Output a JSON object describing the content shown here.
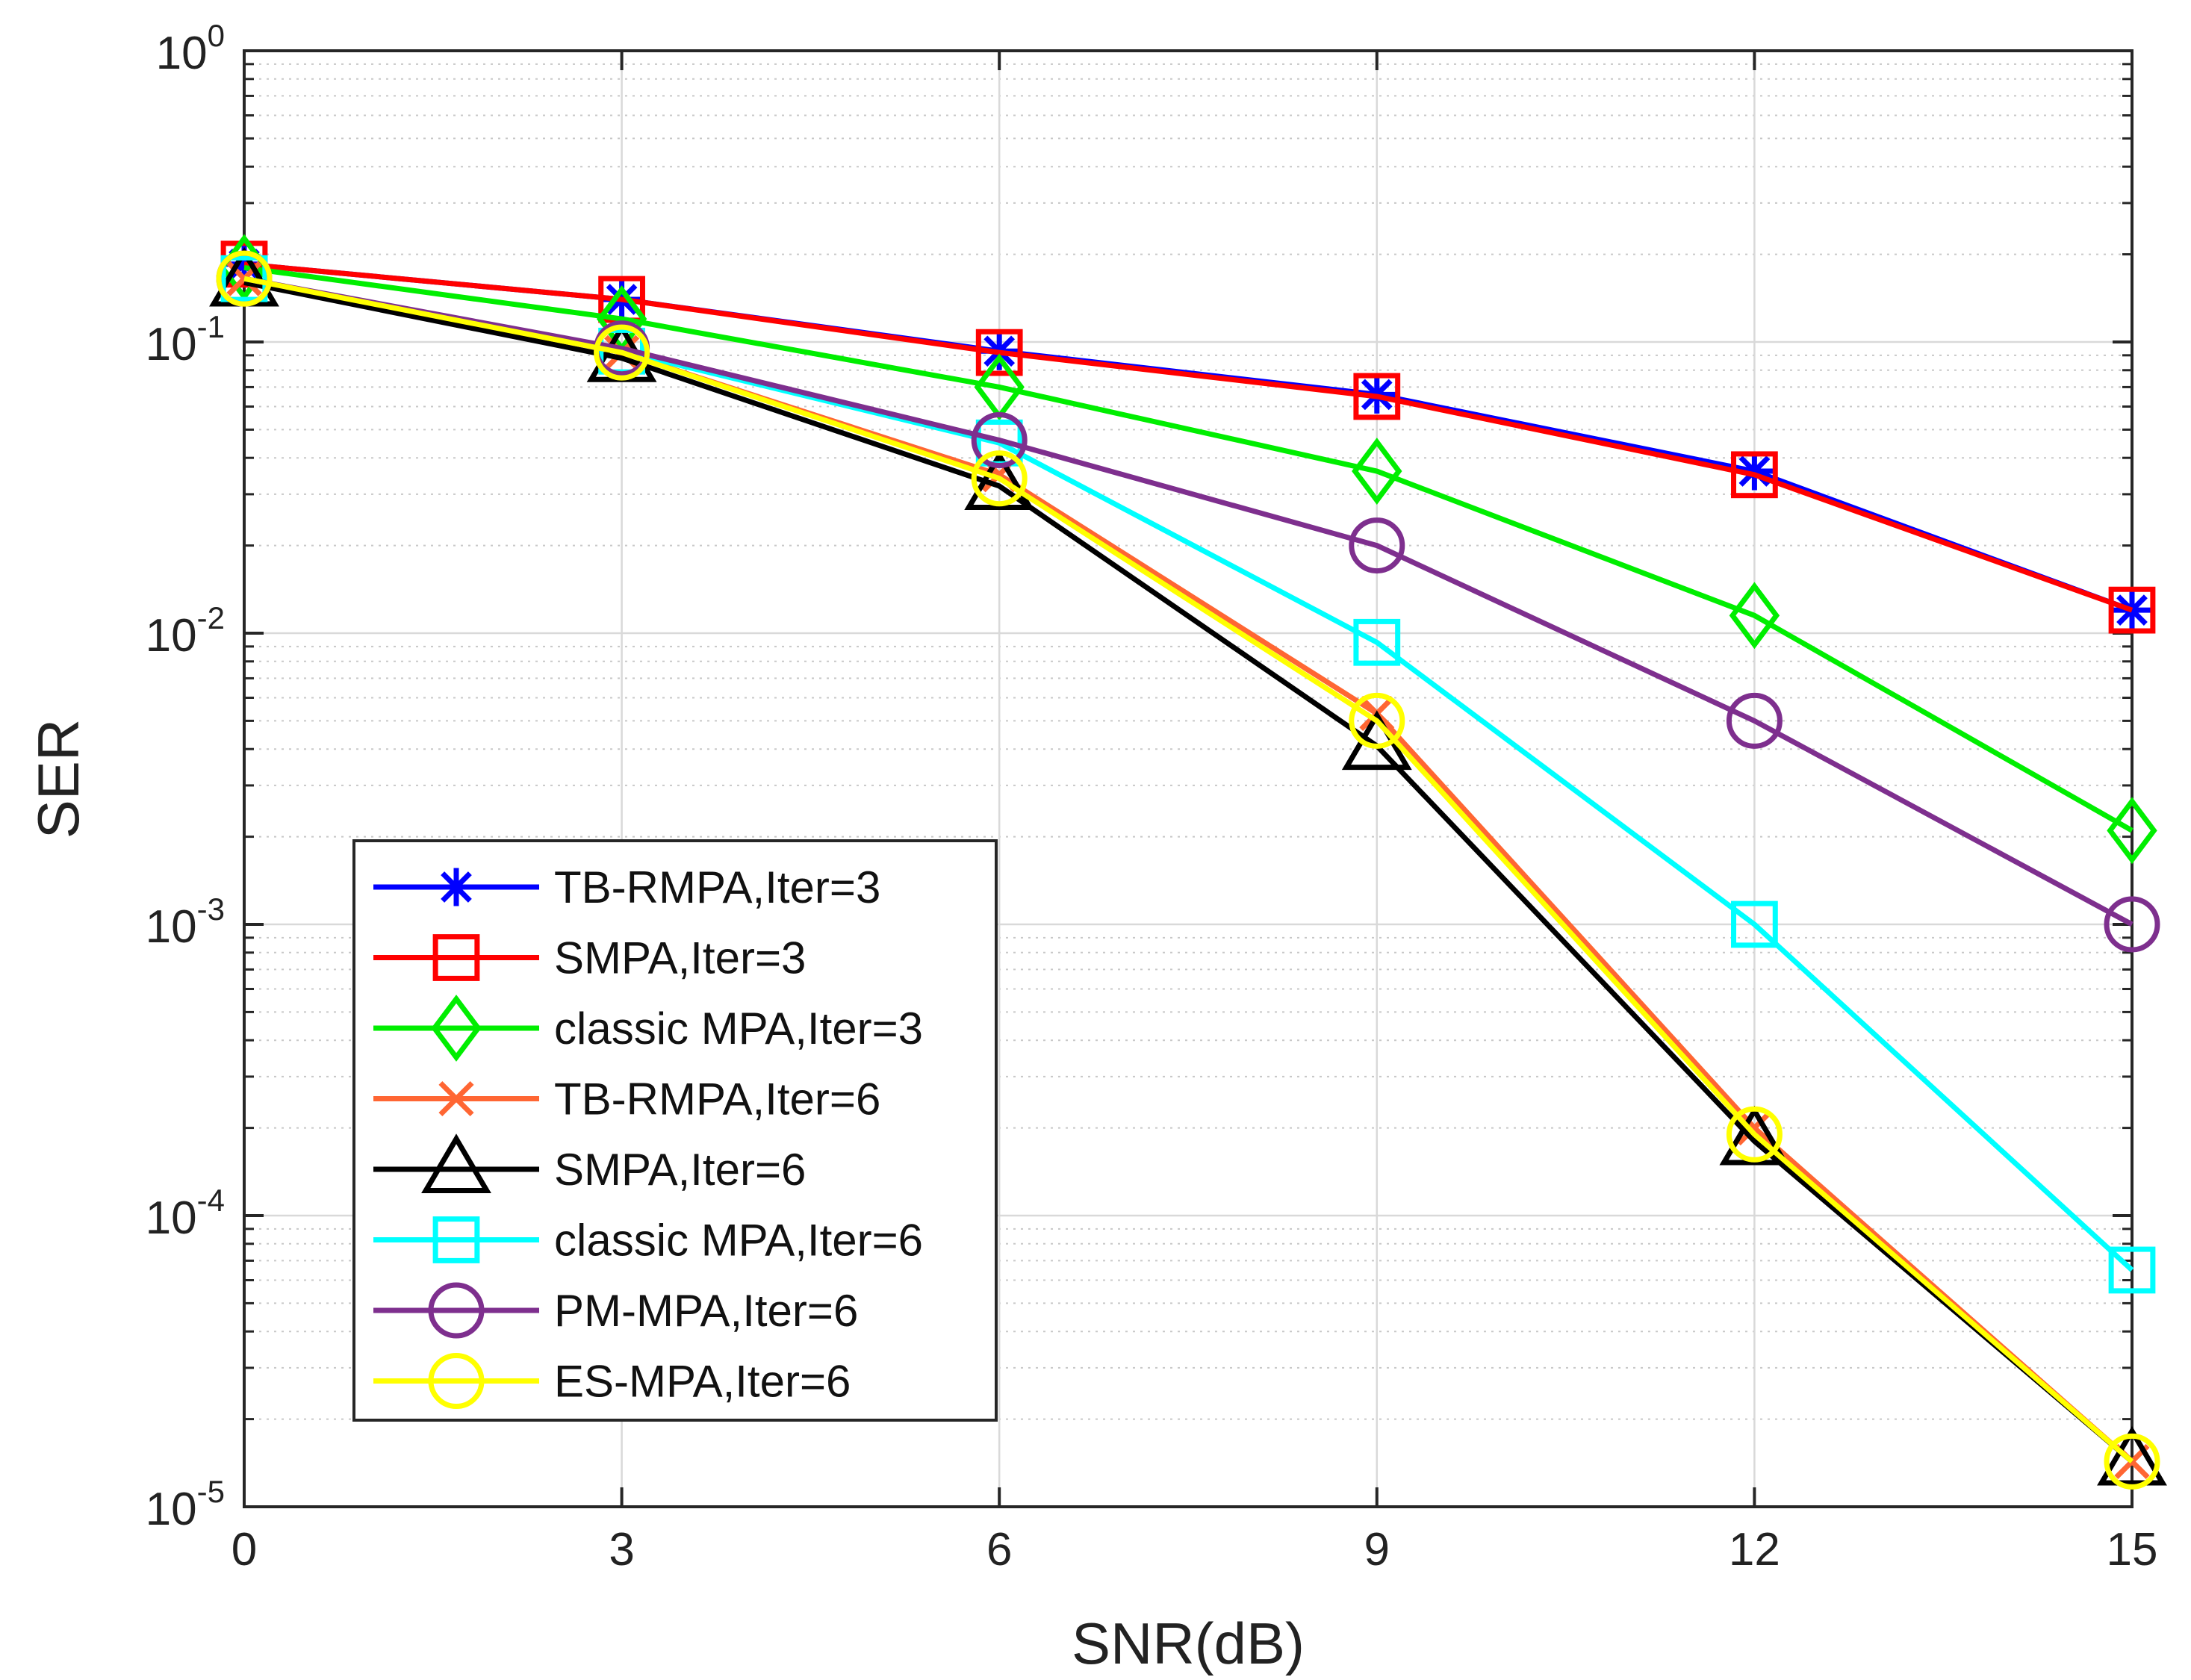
{
  "chart_data": {
    "type": "line",
    "xlabel": "SNR(dB)",
    "ylabel": "SER",
    "yscale": "log",
    "xlim": [
      0,
      15
    ],
    "ylim": [
      1e-05,
      1
    ],
    "xticks": [
      0,
      3,
      6,
      9,
      12,
      15
    ],
    "xtick_labels": [
      "0",
      "3",
      "6",
      "9",
      "12",
      "15"
    ],
    "yticks": [
      {
        "base": "10",
        "exp": "0",
        "value": 1
      },
      {
        "base": "10",
        "exp": "-1",
        "value": 0.1
      },
      {
        "base": "10",
        "exp": "-2",
        "value": 0.01
      },
      {
        "base": "10",
        "exp": "-3",
        "value": 0.001
      },
      {
        "base": "10",
        "exp": "-4",
        "value": 0.0001
      },
      {
        "base": "10",
        "exp": "-5",
        "value": 1e-05
      }
    ],
    "grid": true,
    "legend_position": "bottom-left",
    "x": [
      0,
      3,
      6,
      9,
      12,
      15
    ],
    "series": [
      {
        "name": "TB-RMPA,Iter=3",
        "color": "#0000ff",
        "marker": "asterisk",
        "values": [
          0.185,
          0.14,
          0.093,
          0.066,
          0.036,
          0.012
        ]
      },
      {
        "name": "SMPA,Iter=3",
        "color": "#ff0000",
        "marker": "square",
        "values": [
          0.185,
          0.14,
          0.092,
          0.065,
          0.035,
          0.012
        ]
      },
      {
        "name": "classic MPA,Iter=3",
        "color": "#00ee00",
        "marker": "diamond",
        "values": [
          0.18,
          0.12,
          0.07,
          0.036,
          0.0115,
          0.0021
        ]
      },
      {
        "name": "TB-RMPA,Iter=6",
        "color": "#ff6633",
        "marker": "x",
        "values": [
          0.165,
          0.092,
          0.035,
          0.0053,
          0.0002,
          1.43e-05
        ]
      },
      {
        "name": "SMPA,Iter=6",
        "color": "#000000",
        "marker": "triangle",
        "values": [
          0.16,
          0.088,
          0.032,
          0.0041,
          0.00018,
          1.43e-05
        ]
      },
      {
        "name": "classic MPA,Iter=6",
        "color": "#00ffff",
        "marker": "square",
        "values": [
          0.165,
          0.093,
          0.045,
          0.0093,
          0.001,
          6.5e-05
        ]
      },
      {
        "name": "PM-MPA,Iter=6",
        "color": "#7e2f8e",
        "marker": "circle",
        "values": [
          0.165,
          0.095,
          0.046,
          0.02,
          0.005,
          0.001
        ]
      },
      {
        "name": "ES-MPA,Iter=6",
        "color": "#ffff00",
        "marker": "circle",
        "values": [
          0.165,
          0.092,
          0.034,
          0.005,
          0.00019,
          1.43e-05
        ]
      }
    ]
  }
}
